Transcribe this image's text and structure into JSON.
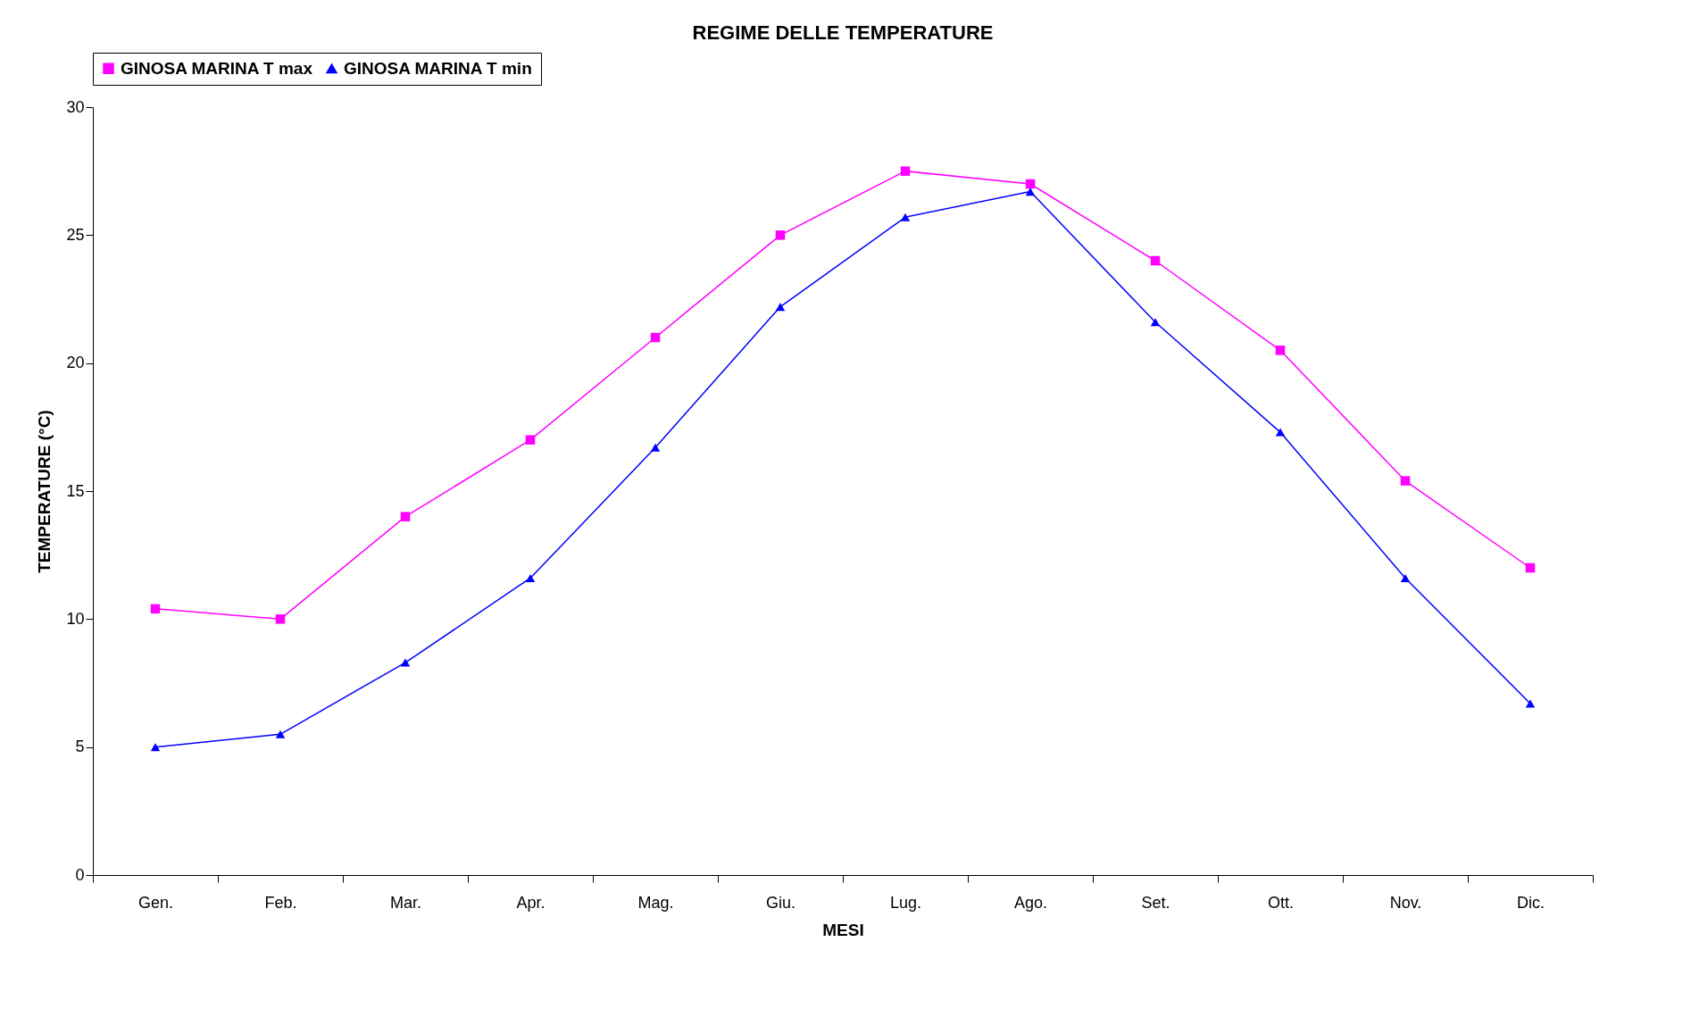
{
  "chart_data": {
    "type": "line",
    "title": "REGIME DELLE TEMPERATURE",
    "xlabel": "MESI",
    "ylabel": "TEMPERATURE (°C)",
    "categories": [
      "Gen.",
      "Feb.",
      "Mar.",
      "Apr.",
      "Mag.",
      "Giu.",
      "Lug.",
      "Ago.",
      "Set.",
      "Ott.",
      "Nov.",
      "Dic."
    ],
    "series": [
      {
        "name": "GINOSA MARINA T max",
        "color": "#ff00ff",
        "marker": "square",
        "values": [
          10.4,
          10.0,
          14.0,
          17.0,
          21.0,
          25.0,
          27.5,
          27.0,
          24.0,
          20.5,
          15.4,
          12.0
        ]
      },
      {
        "name": "GINOSA MARINA T min",
        "color": "#0000ff",
        "marker": "triangle",
        "values": [
          5.0,
          5.5,
          8.3,
          11.6,
          16.7,
          22.2,
          25.7,
          26.7,
          21.6,
          17.3,
          11.6,
          6.7
        ]
      }
    ],
    "ylim": [
      0,
      30
    ],
    "yticks": [
      0,
      5,
      10,
      15,
      20,
      25,
      30
    ],
    "grid": false,
    "legend": "top",
    "line_style": "solid"
  }
}
